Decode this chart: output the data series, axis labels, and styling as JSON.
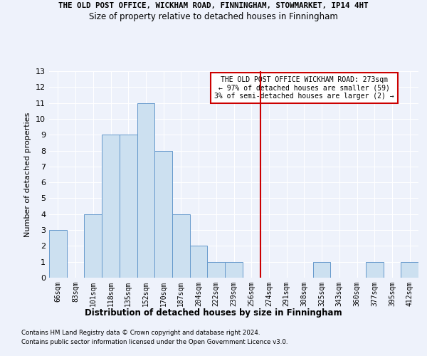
{
  "title_line1": "THE OLD POST OFFICE, WICKHAM ROAD, FINNINGHAM, STOWMARKET, IP14 4HT",
  "title_line2": "Size of property relative to detached houses in Finningham",
  "xlabel": "Distribution of detached houses by size in Finningham",
  "ylabel": "Number of detached properties",
  "categories": [
    "66sqm",
    "83sqm",
    "101sqm",
    "118sqm",
    "135sqm",
    "152sqm",
    "170sqm",
    "187sqm",
    "204sqm",
    "222sqm",
    "239sqm",
    "256sqm",
    "274sqm",
    "291sqm",
    "308sqm",
    "325sqm",
    "343sqm",
    "360sqm",
    "377sqm",
    "395sqm",
    "412sqm"
  ],
  "values": [
    3,
    0,
    4,
    9,
    9,
    11,
    8,
    4,
    2,
    1,
    1,
    0,
    0,
    0,
    0,
    1,
    0,
    0,
    1,
    0,
    1
  ],
  "bar_color": "#cce0f0",
  "bar_edge_color": "#6699cc",
  "vline_index": 12,
  "annotation_title": "THE OLD POST OFFICE WICKHAM ROAD: 273sqm",
  "annotation_line2": "← 97% of detached houses are smaller (59)",
  "annotation_line3": "3% of semi-detached houses are larger (2) →",
  "vline_color": "#cc0000",
  "annotation_box_edge_color": "#cc0000",
  "ylim": [
    0,
    13
  ],
  "yticks": [
    0,
    1,
    2,
    3,
    4,
    5,
    6,
    7,
    8,
    9,
    10,
    11,
    12,
    13
  ],
  "footer_line1": "Contains HM Land Registry data © Crown copyright and database right 2024.",
  "footer_line2": "Contains public sector information licensed under the Open Government Licence v3.0.",
  "background_color": "#eef2fb",
  "grid_color": "#ffffff"
}
